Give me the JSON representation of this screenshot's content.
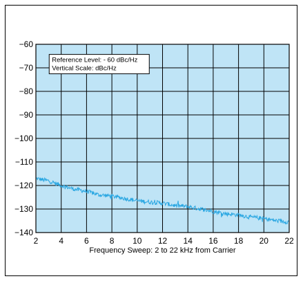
{
  "chart_data": {
    "type": "line",
    "xlabel": "Frequency Sweep: 2 to 22 kHz from Carrier",
    "ylabel": "",
    "title": "",
    "xlim": [
      2,
      22
    ],
    "ylim": [
      -140,
      -60
    ],
    "x_ticks": [
      2,
      4,
      6,
      8,
      10,
      12,
      14,
      16,
      18,
      20,
      22
    ],
    "y_ticks": [
      -60,
      -70,
      -80,
      -90,
      -100,
      -110,
      -120,
      -130,
      -140
    ],
    "y_tick_labels": [
      "−60",
      "−70",
      "−80",
      "−90",
      "−100",
      "−110",
      "−120",
      "−130",
      "−140"
    ],
    "grid": true,
    "annotation": {
      "lines": [
        "Reference Level: - 60 dBc/Hz",
        "Vertical Scale: dBc/Hz"
      ],
      "position": "top-left"
    },
    "series": [
      {
        "x": [
          2,
          2.5,
          3,
          3.5,
          4,
          5,
          6,
          7,
          8,
          9,
          10,
          11,
          12,
          13,
          14,
          15,
          16,
          17,
          18,
          19,
          20,
          21,
          22
        ],
        "y": [
          -117,
          -117.5,
          -118,
          -119,
          -120,
          -121.5,
          -122.5,
          -124,
          -124.5,
          -125.5,
          -126.5,
          -127,
          -127.5,
          -128.5,
          -129,
          -130,
          -131,
          -132,
          -132.5,
          -133.5,
          -134,
          -135,
          -135.5
        ]
      }
    ]
  },
  "colors": {
    "plot_background": "#bfe4f6",
    "trace": "#2aa7e2",
    "grid": "#000000"
  }
}
